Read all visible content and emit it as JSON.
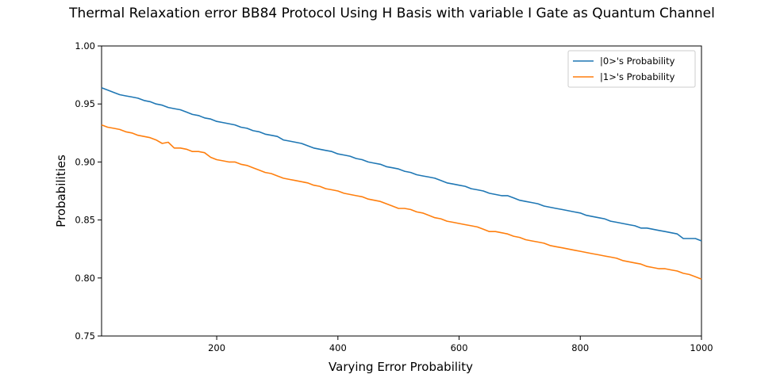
{
  "chart_data": {
    "type": "line",
    "title": "Thermal Relaxation error BB84 Protocol Using H Basis with variable I Gate as Quantum Channel",
    "xlabel": "Varying Error Probability",
    "ylabel": "Probabilities",
    "xlim": [
      10,
      1000
    ],
    "ylim": [
      0.75,
      1.0
    ],
    "xticks": [
      200,
      400,
      600,
      800,
      1000
    ],
    "yticks": [
      "0.75",
      "0.80",
      "0.85",
      "0.90",
      "0.95",
      "1.00"
    ],
    "grid": false,
    "legend_position": "upper right",
    "x": [
      10,
      20,
      30,
      40,
      50,
      60,
      70,
      80,
      90,
      100,
      110,
      120,
      130,
      140,
      150,
      160,
      170,
      180,
      190,
      200,
      210,
      220,
      230,
      240,
      250,
      260,
      270,
      280,
      290,
      300,
      310,
      320,
      330,
      340,
      350,
      360,
      370,
      380,
      390,
      400,
      410,
      420,
      430,
      440,
      450,
      460,
      470,
      480,
      490,
      500,
      510,
      520,
      530,
      540,
      550,
      560,
      570,
      580,
      590,
      600,
      610,
      620,
      630,
      640,
      650,
      660,
      670,
      680,
      690,
      700,
      710,
      720,
      730,
      740,
      750,
      760,
      770,
      780,
      790,
      800,
      810,
      820,
      830,
      840,
      850,
      860,
      870,
      880,
      890,
      900,
      910,
      920,
      930,
      940,
      950,
      960,
      970,
      980,
      990,
      1000
    ],
    "series": [
      {
        "name": "|0>'s Probability",
        "color": "#1f77b4",
        "values": [
          0.964,
          0.962,
          0.96,
          0.958,
          0.957,
          0.956,
          0.955,
          0.953,
          0.952,
          0.95,
          0.949,
          0.947,
          0.946,
          0.945,
          0.943,
          0.941,
          0.94,
          0.938,
          0.937,
          0.935,
          0.934,
          0.933,
          0.932,
          0.93,
          0.929,
          0.927,
          0.926,
          0.924,
          0.923,
          0.922,
          0.919,
          0.918,
          0.917,
          0.916,
          0.914,
          0.912,
          0.911,
          0.91,
          0.909,
          0.907,
          0.906,
          0.905,
          0.903,
          0.902,
          0.9,
          0.899,
          0.898,
          0.896,
          0.895,
          0.894,
          0.892,
          0.891,
          0.889,
          0.888,
          0.887,
          0.886,
          0.884,
          0.882,
          0.881,
          0.88,
          0.879,
          0.877,
          0.876,
          0.875,
          0.873,
          0.872,
          0.871,
          0.871,
          0.869,
          0.867,
          0.866,
          0.865,
          0.864,
          0.862,
          0.861,
          0.86,
          0.859,
          0.858,
          0.857,
          0.856,
          0.854,
          0.853,
          0.852,
          0.851,
          0.849,
          0.848,
          0.847,
          0.846,
          0.845,
          0.843,
          0.843,
          0.842,
          0.841,
          0.84,
          0.839,
          0.838,
          0.834,
          0.834,
          0.834,
          0.832
        ]
      },
      {
        "name": "|1>'s Probability",
        "color": "#ff7f0e",
        "values": [
          0.932,
          0.93,
          0.929,
          0.928,
          0.926,
          0.925,
          0.923,
          0.922,
          0.921,
          0.919,
          0.916,
          0.917,
          0.912,
          0.912,
          0.911,
          0.909,
          0.909,
          0.908,
          0.904,
          0.902,
          0.901,
          0.9,
          0.9,
          0.898,
          0.897,
          0.895,
          0.893,
          0.891,
          0.89,
          0.888,
          0.886,
          0.885,
          0.884,
          0.883,
          0.882,
          0.88,
          0.879,
          0.877,
          0.876,
          0.875,
          0.873,
          0.872,
          0.871,
          0.87,
          0.868,
          0.867,
          0.866,
          0.864,
          0.862,
          0.86,
          0.86,
          0.859,
          0.857,
          0.856,
          0.854,
          0.852,
          0.851,
          0.849,
          0.848,
          0.847,
          0.846,
          0.845,
          0.844,
          0.842,
          0.84,
          0.84,
          0.839,
          0.838,
          0.836,
          0.835,
          0.833,
          0.832,
          0.831,
          0.83,
          0.828,
          0.827,
          0.826,
          0.825,
          0.824,
          0.823,
          0.822,
          0.821,
          0.82,
          0.819,
          0.818,
          0.817,
          0.815,
          0.814,
          0.813,
          0.812,
          0.81,
          0.809,
          0.808,
          0.808,
          0.807,
          0.806,
          0.804,
          0.803,
          0.801,
          0.799
        ]
      }
    ]
  }
}
